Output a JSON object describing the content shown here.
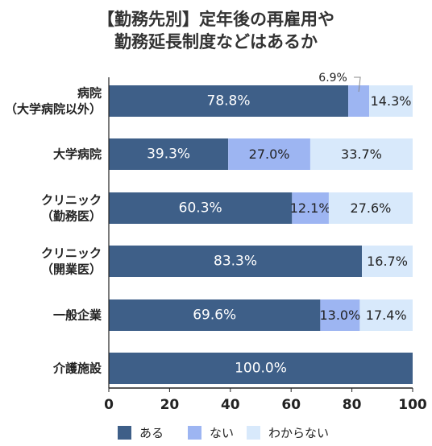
{
  "title_lines": [
    "【勤務先別】定年後の再雇用や",
    "勤務延長制度などはあるか"
  ],
  "colors": {
    "aru": "#3e5f88",
    "nai": "#9db5f2",
    "wakaranai": "#d8e9fb"
  },
  "chart_data": {
    "type": "bar",
    "orientation": "horizontal",
    "stacked": true,
    "title": "【勤務先別】定年後の再雇用や勤務延長制度などはあるか",
    "categories": [
      [
        "病院",
        "（大学病院以外）"
      ],
      [
        "大学病院"
      ],
      [
        "クリニック",
        "（勤務医）"
      ],
      [
        "クリニック",
        "（開業医）"
      ],
      [
        "一般企業"
      ],
      [
        "介護施設"
      ]
    ],
    "series": [
      {
        "name": "ある",
        "values": [
          78.8,
          39.3,
          60.3,
          83.3,
          69.6,
          100.0
        ],
        "labels": [
          "78.8%",
          "39.3%",
          "60.3%",
          "83.3%",
          "69.6%",
          "100.0%"
        ]
      },
      {
        "name": "ない",
        "values": [
          6.9,
          27.0,
          12.1,
          0,
          13.0,
          0
        ],
        "labels": [
          "6.9%",
          "27.0%",
          "12.1%",
          "",
          "13.0%",
          ""
        ]
      },
      {
        "name": "わからない",
        "values": [
          14.3,
          33.7,
          27.6,
          16.7,
          17.4,
          0
        ],
        "labels": [
          "14.3%",
          "33.7%",
          "27.6%",
          "16.7%",
          "17.4%",
          ""
        ]
      }
    ],
    "xlim": [
      0,
      100
    ],
    "xticks": [
      "0",
      "20",
      "40",
      "60",
      "80",
      "100"
    ],
    "legend_position": "bottom",
    "grid": false
  }
}
